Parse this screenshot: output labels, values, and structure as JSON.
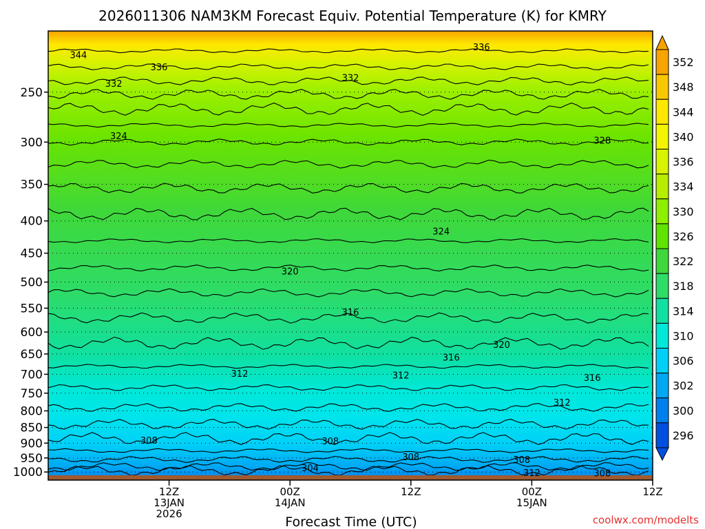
{
  "chart_data": {
    "type": "heatmap",
    "title": "2026011306 NAM3KM Forecast Equiv. Potential Temperature (K) for KMRY",
    "xlabel": "Forecast Time (UTC)",
    "ylabel": "",
    "xlim": [
      -6,
      54
    ],
    "ylim": [
      1030,
      200
    ],
    "y_ticks": [
      250,
      300,
      350,
      400,
      450,
      500,
      550,
      600,
      650,
      700,
      750,
      800,
      850,
      900,
      950,
      1000
    ],
    "x_ticks": [
      {
        "hour": 6,
        "label": "12Z",
        "label2": "13JAN",
        "label3": "2026"
      },
      {
        "hour": 18,
        "label": "00Z",
        "label2": "14JAN",
        "label3": ""
      },
      {
        "hour": 30,
        "label": "12Z",
        "label2": "",
        "label3": ""
      },
      {
        "hour": 42,
        "label": "00Z",
        "label2": "15JAN",
        "label3": ""
      },
      {
        "hour": 54,
        "label": "12Z",
        "label2": "",
        "label3": ""
      }
    ],
    "ground_pressure": 1012,
    "colorbar": {
      "labels": [
        "352",
        "348",
        "344",
        "340",
        "336",
        "334",
        "330",
        "326",
        "322",
        "318",
        "314",
        "310",
        "306",
        "302",
        "300",
        "296"
      ],
      "colors": [
        "#f7a400",
        "#f7c800",
        "#ffe800",
        "#f3f500",
        "#d9f200",
        "#b8ec00",
        "#8cf000",
        "#5fe400",
        "#3fd83a",
        "#2edc66",
        "#10e0a0",
        "#00e8d8",
        "#00d0f8",
        "#00a8f4",
        "#0080ec",
        "#0050e0"
      ]
    },
    "contours": [
      {
        "value": 344,
        "label": "344",
        "label_hour": -3,
        "label_p": 218
      },
      {
        "value": 336,
        "label": "336",
        "label_hour": 5,
        "label_p": 228
      },
      {
        "value": 336,
        "label": "336",
        "label_hour": 37,
        "label_p": 212
      },
      {
        "value": 332,
        "label": "332",
        "label_hour": 0.5,
        "label_p": 242
      },
      {
        "value": 332,
        "label": "332",
        "label_hour": 24,
        "label_p": 237
      },
      {
        "value": 328,
        "label": "328",
        "label_hour": 49,
        "label_p": 298
      },
      {
        "value": 324,
        "label": "324",
        "label_hour": 1,
        "label_p": 293
      },
      {
        "value": 324,
        "label": "324",
        "label_hour": 33,
        "label_p": 415
      },
      {
        "value": 320,
        "label": "320",
        "label_hour": 18,
        "label_p": 480
      },
      {
        "value": 320,
        "label": "320",
        "label_hour": 39,
        "label_p": 628
      },
      {
        "value": 316,
        "label": "316",
        "label_hour": 24,
        "label_p": 558
      },
      {
        "value": 316,
        "label": "316",
        "label_hour": 34,
        "label_p": 658
      },
      {
        "value": 316,
        "label": "316",
        "label_hour": 48,
        "label_p": 708
      },
      {
        "value": 312,
        "label": "312",
        "label_hour": 13,
        "label_p": 698
      },
      {
        "value": 312,
        "label": "312",
        "label_hour": 29,
        "label_p": 702
      },
      {
        "value": 312,
        "label": "312",
        "label_hour": 45,
        "label_p": 775
      },
      {
        "value": 312,
        "label": "312",
        "label_hour": 42,
        "label_p": 1002
      },
      {
        "value": 308,
        "label": "308",
        "label_hour": 4,
        "label_p": 890
      },
      {
        "value": 308,
        "label": "308",
        "label_hour": 22,
        "label_p": 893
      },
      {
        "value": 308,
        "label": "308",
        "label_hour": 30,
        "label_p": 946
      },
      {
        "value": 308,
        "label": "308",
        "label_hour": 41,
        "label_p": 955
      },
      {
        "value": 308,
        "label": "308",
        "label_hour": 49,
        "label_p": 1003
      },
      {
        "value": 304,
        "label": "304",
        "label_hour": 20,
        "label_p": 985
      }
    ]
  },
  "credit": "coolwx.com/modelts"
}
